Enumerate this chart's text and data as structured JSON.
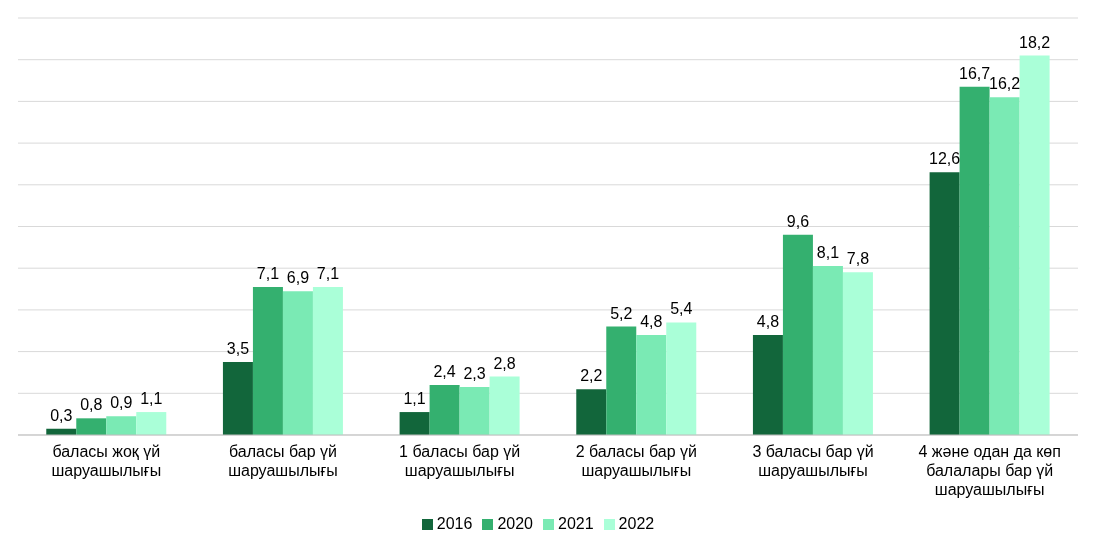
{
  "chart_data": {
    "type": "bar",
    "categories": [
      "баласы жоқ үй шаруашылығы",
      "баласы бар үй шаруашылығы",
      "1 баласы бар үй шаруашылығы",
      "2 баласы бар үй шаруашылығы",
      "3 баласы бар үй шаруашылығы",
      "4 және одан да көп балалары бар үй шаруашылығы"
    ],
    "series": [
      {
        "name": "2016",
        "color": "#12663b",
        "values": [
          0.3,
          3.5,
          1.1,
          2.2,
          4.8,
          12.6
        ],
        "value_labels": [
          "0,3",
          "3,5",
          "1,1",
          "2,2",
          "4,8",
          "12,6"
        ]
      },
      {
        "name": "2020",
        "color": "#34b06f",
        "values": [
          0.8,
          7.1,
          2.4,
          5.2,
          9.6,
          16.7
        ],
        "value_labels": [
          "0,8",
          "7,1",
          "2,4",
          "5,2",
          "9,6",
          "16,7"
        ]
      },
      {
        "name": "2021",
        "color": "#7aeab4",
        "values": [
          0.9,
          6.9,
          2.3,
          4.8,
          8.1,
          16.2
        ],
        "value_labels": [
          "0,9",
          "6,9",
          "2,3",
          "4,8",
          "8,1",
          "16,2"
        ]
      },
      {
        "name": "2022",
        "color": "#aaffd8",
        "values": [
          1.1,
          7.1,
          2.8,
          5.4,
          7.8,
          18.2
        ],
        "value_labels": [
          "1,1",
          "7,1",
          "2,8",
          "5,4",
          "7,8",
          "18,2"
        ]
      }
    ],
    "ylim": [
      0,
      20
    ],
    "yticks": [
      {
        "value": 0,
        "label": null
      },
      {
        "value": 2,
        "label": null
      },
      {
        "value": 4,
        "label": null
      },
      {
        "value": 6,
        "label": null
      },
      {
        "value": 8,
        "label": null
      },
      {
        "value": 10,
        "label": null
      },
      {
        "value": 12,
        "label": null
      },
      {
        "value": 14,
        "label": null
      },
      {
        "value": 16,
        "label": null
      },
      {
        "value": 18,
        "label": null
      },
      {
        "value": 20,
        "label": null
      }
    ],
    "grid": "y",
    "tick_labels": "x",
    "legend": "bottom"
  }
}
